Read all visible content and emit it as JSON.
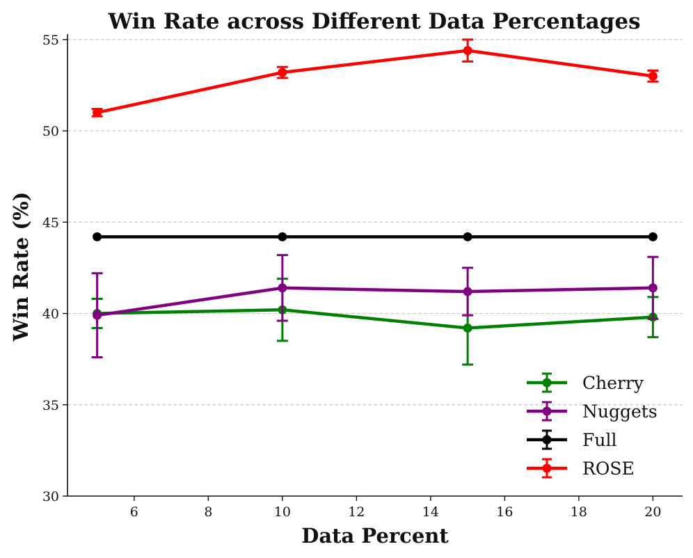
{
  "chart_data": {
    "type": "line",
    "title": "Win Rate across Different Data Percentages",
    "xlabel": "Data Percent",
    "ylabel": "Win Rate (%)",
    "xlim": [
      4.2,
      20.8
    ],
    "ylim": [
      30,
      55.3
    ],
    "xticks": [
      6,
      8,
      10,
      12,
      14,
      16,
      18,
      20
    ],
    "yticks": [
      30,
      35,
      40,
      45,
      50,
      55
    ],
    "grid": "horizontal dashed",
    "legend_position": "bottom-right",
    "x": [
      5,
      10,
      15,
      20
    ],
    "series": [
      {
        "name": "Cherry",
        "color": "#008000",
        "values": [
          40.0,
          40.2,
          39.2,
          39.8
        ],
        "errors": [
          0.8,
          1.7,
          2.0,
          1.1
        ]
      },
      {
        "name": "Nuggets",
        "color": "#800080",
        "values": [
          39.9,
          41.4,
          41.2,
          41.4
        ],
        "errors": [
          2.3,
          1.8,
          1.3,
          1.7
        ]
      },
      {
        "name": "Full",
        "color": "#000000",
        "values": [
          44.2,
          44.2,
          44.2,
          44.2
        ],
        "errors": [
          0,
          0,
          0,
          0
        ]
      },
      {
        "name": "ROSE",
        "color": "#ff0000",
        "values": [
          51.0,
          53.2,
          54.4,
          53.0
        ],
        "errors": [
          0.2,
          0.3,
          0.6,
          0.3
        ]
      }
    ]
  }
}
